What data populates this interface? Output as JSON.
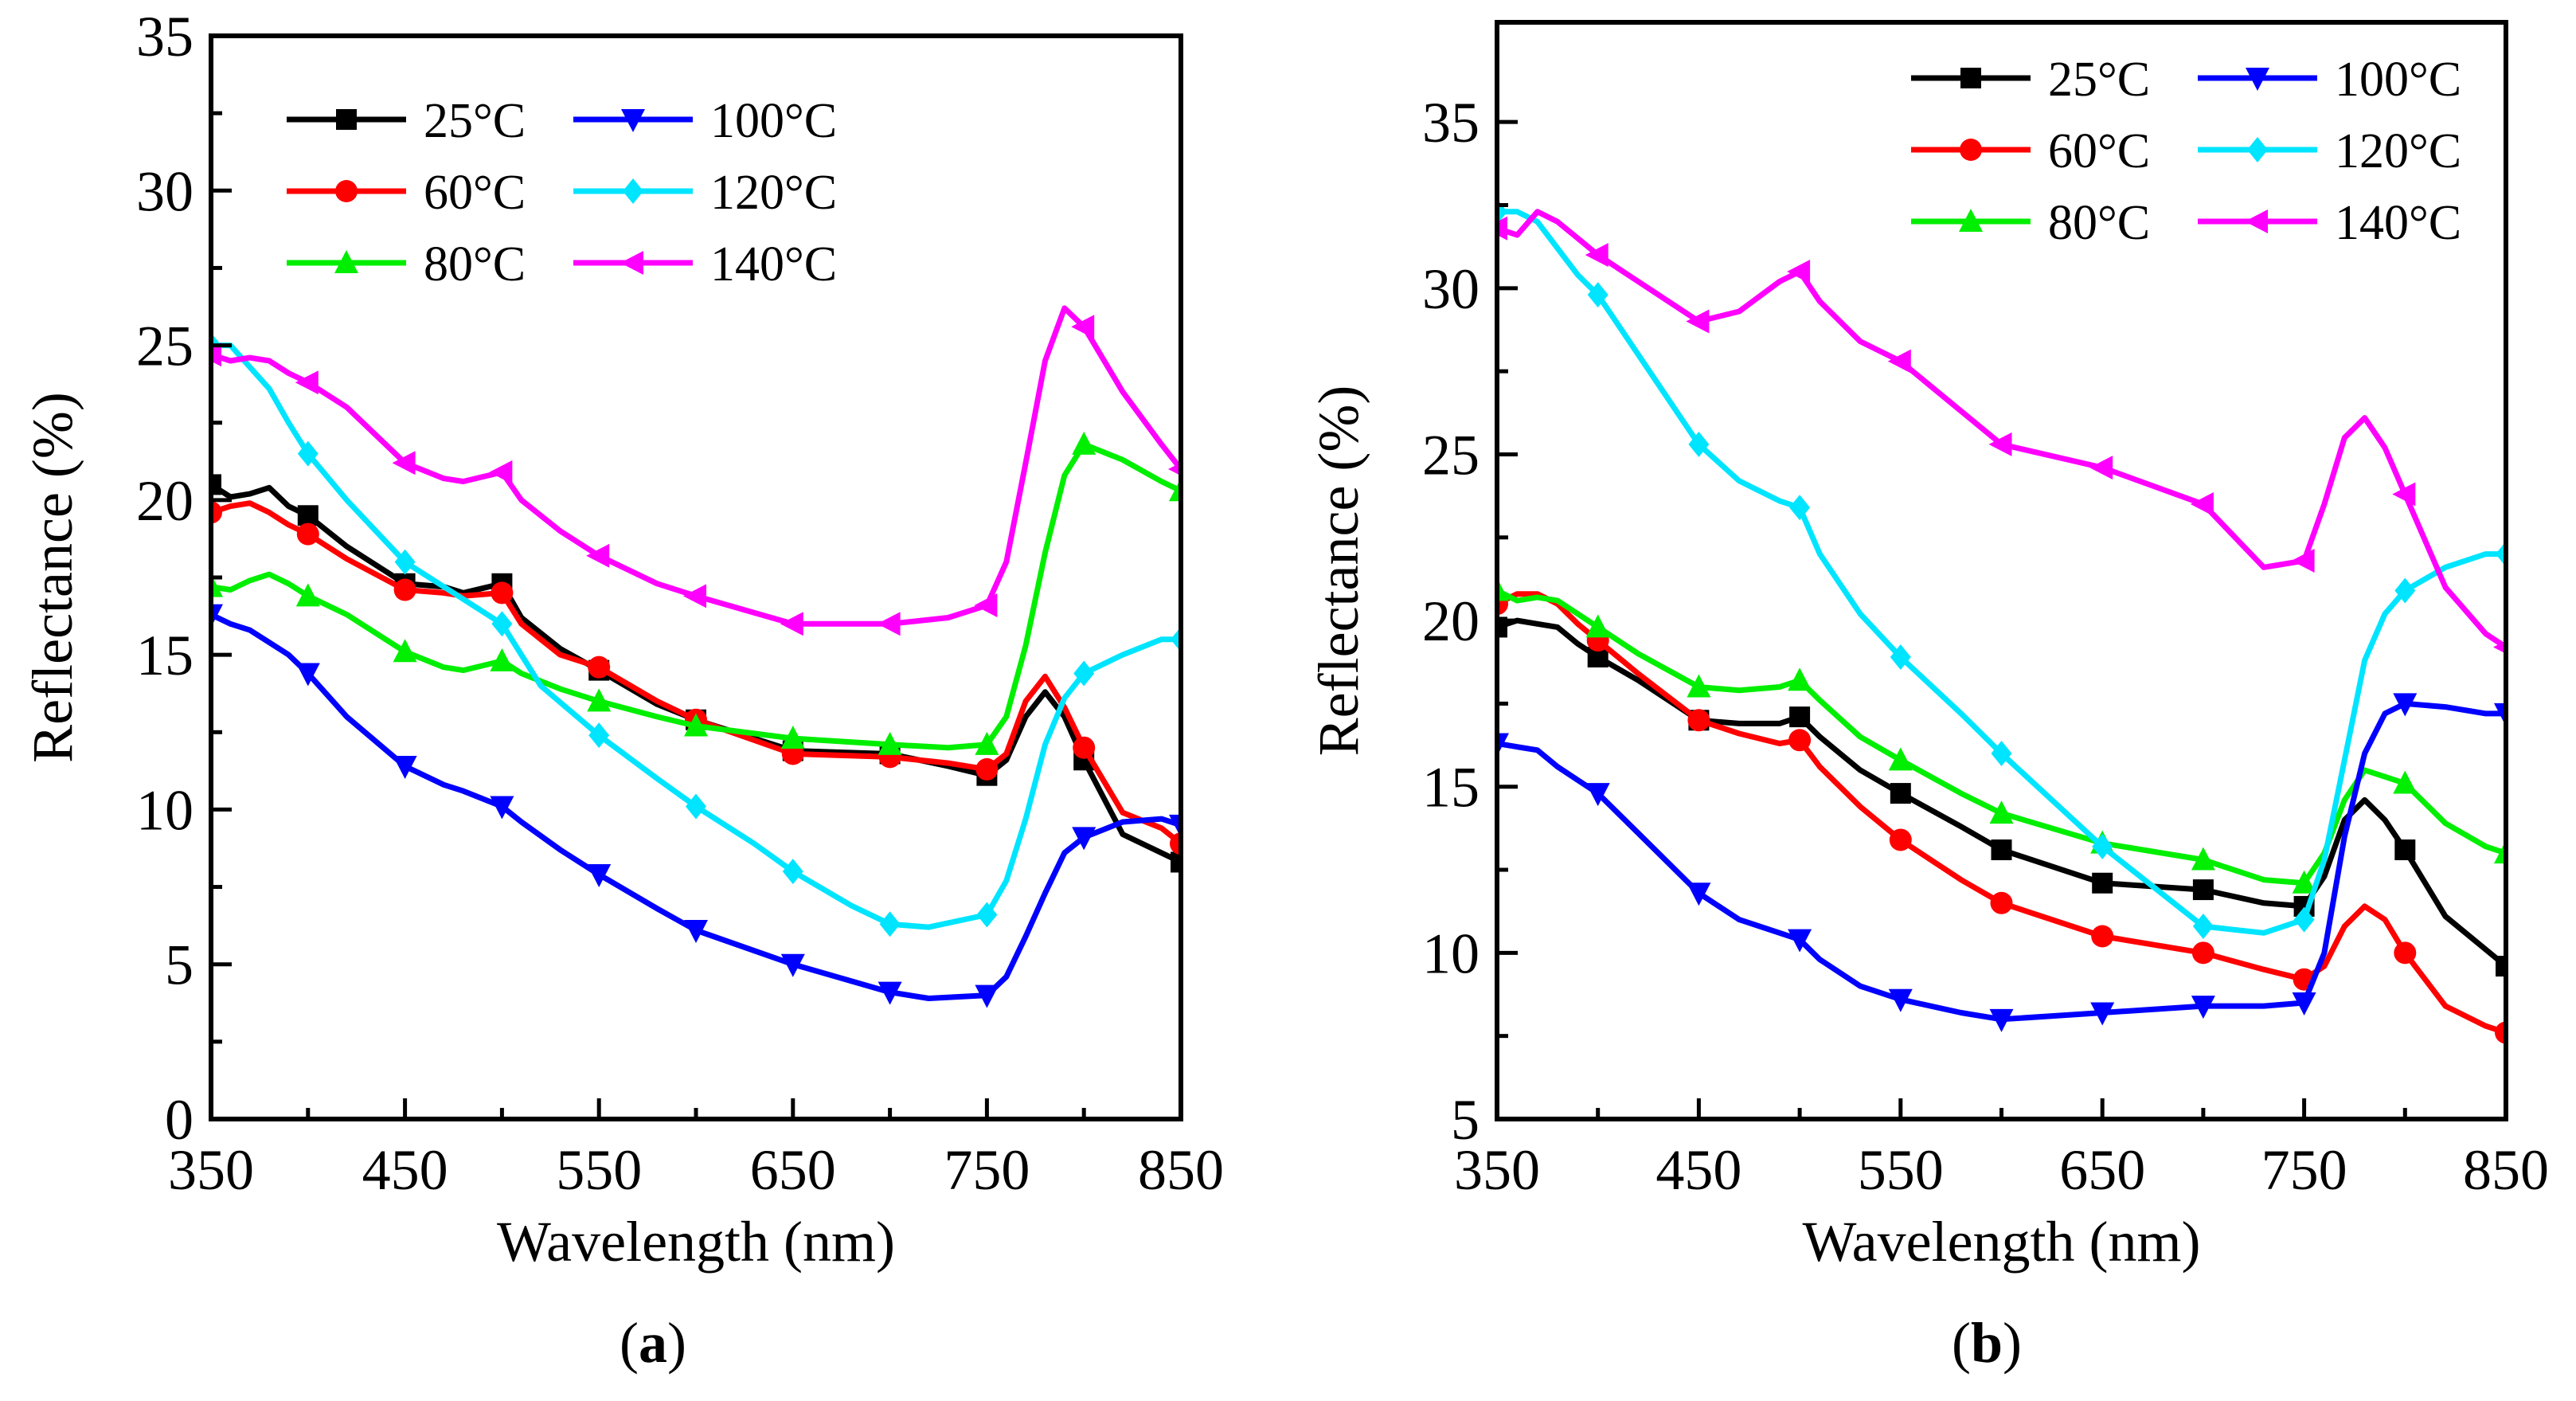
{
  "figure": {
    "panels": [
      "a",
      "b"
    ]
  },
  "chart_data": [
    {
      "type": "line",
      "panel_label": "a",
      "caption": {
        "open": "(",
        "letter": "a",
        "close": ")"
      },
      "xlabel": "Wavelength (nm)",
      "ylabel": "Reflectance (%)",
      "xlim": [
        350,
        850
      ],
      "ylim": [
        0,
        35
      ],
      "xticks": [
        350,
        450,
        550,
        650,
        750,
        850
      ],
      "yticks": [
        0,
        5,
        10,
        15,
        20,
        25,
        30,
        35
      ],
      "grid": false,
      "legend_position": "top",
      "series": [
        {
          "name": "25°C",
          "color": "#000000",
          "marker": "square",
          "x": [
            350,
            360,
            370,
            380,
            390,
            400,
            420,
            450,
            470,
            480,
            500,
            510,
            530,
            550,
            580,
            600,
            650,
            700,
            730,
            750,
            760,
            770,
            780,
            790,
            800,
            820,
            840,
            850
          ],
          "y": [
            20.5,
            20.1,
            20.2,
            20.4,
            19.8,
            19.5,
            18.5,
            17.3,
            17.2,
            17.0,
            17.3,
            16.2,
            15.2,
            14.5,
            13.4,
            12.9,
            11.9,
            11.8,
            11.4,
            11.1,
            11.6,
            13.0,
            13.8,
            13.0,
            11.6,
            9.2,
            8.6,
            8.3
          ]
        },
        {
          "name": "60°C",
          "color": "#ff0000",
          "marker": "circle",
          "x": [
            350,
            360,
            370,
            380,
            390,
            400,
            420,
            450,
            470,
            480,
            500,
            510,
            530,
            550,
            580,
            600,
            650,
            700,
            730,
            750,
            760,
            770,
            780,
            790,
            800,
            820,
            840,
            850
          ],
          "y": [
            19.6,
            19.8,
            19.9,
            19.6,
            19.2,
            18.9,
            18.1,
            17.1,
            17.0,
            16.9,
            17.0,
            16.0,
            15.0,
            14.6,
            13.5,
            12.9,
            11.8,
            11.7,
            11.5,
            11.3,
            11.8,
            13.5,
            14.3,
            13.3,
            12.0,
            9.9,
            9.4,
            8.9
          ]
        },
        {
          "name": "80°C",
          "color": "#00ee00",
          "marker": "triangle-up",
          "x": [
            350,
            360,
            370,
            380,
            390,
            400,
            420,
            450,
            470,
            480,
            500,
            510,
            530,
            550,
            580,
            600,
            650,
            700,
            730,
            750,
            760,
            770,
            780,
            790,
            800,
            820,
            840,
            850
          ],
          "y": [
            17.2,
            17.1,
            17.4,
            17.6,
            17.3,
            16.9,
            16.3,
            15.1,
            14.6,
            14.5,
            14.8,
            14.4,
            13.9,
            13.5,
            13.0,
            12.7,
            12.3,
            12.1,
            12.0,
            12.1,
            13.0,
            15.3,
            18.3,
            20.8,
            21.8,
            21.3,
            20.6,
            20.3
          ]
        },
        {
          "name": "100°C",
          "color": "#0000ff",
          "marker": "triangle-down",
          "x": [
            350,
            360,
            370,
            380,
            390,
            400,
            420,
            450,
            470,
            480,
            500,
            510,
            530,
            550,
            580,
            600,
            650,
            700,
            720,
            750,
            760,
            770,
            780,
            790,
            800,
            820,
            840,
            850
          ],
          "y": [
            16.3,
            16.0,
            15.8,
            15.4,
            15.0,
            14.4,
            13.0,
            11.4,
            10.8,
            10.6,
            10.1,
            9.6,
            8.7,
            7.9,
            6.8,
            6.1,
            5.0,
            4.1,
            3.9,
            4.0,
            4.6,
            5.9,
            7.3,
            8.6,
            9.1,
            9.6,
            9.7,
            9.5
          ]
        },
        {
          "name": "120°C",
          "color": "#00e5ff",
          "marker": "diamond",
          "x": [
            350,
            360,
            370,
            380,
            390,
            400,
            420,
            450,
            480,
            500,
            520,
            550,
            580,
            600,
            630,
            650,
            680,
            700,
            720,
            750,
            760,
            770,
            780,
            790,
            800,
            820,
            840,
            850
          ],
          "y": [
            25.0,
            25.0,
            24.3,
            23.6,
            22.5,
            21.5,
            20.0,
            18.0,
            16.8,
            16.0,
            14.0,
            12.4,
            11.0,
            10.1,
            8.9,
            8.0,
            6.9,
            6.3,
            6.2,
            6.6,
            7.7,
            9.7,
            12.1,
            13.6,
            14.4,
            15.0,
            15.5,
            15.5
          ]
        },
        {
          "name": "140°C",
          "color": "#ff00ff",
          "marker": "triangle-left",
          "x": [
            350,
            360,
            370,
            380,
            390,
            400,
            420,
            450,
            470,
            480,
            500,
            510,
            530,
            550,
            580,
            600,
            650,
            700,
            730,
            750,
            760,
            770,
            780,
            790,
            800,
            820,
            840,
            850
          ],
          "y": [
            24.7,
            24.5,
            24.6,
            24.5,
            24.1,
            23.8,
            23.0,
            21.2,
            20.7,
            20.6,
            20.9,
            20.0,
            19.0,
            18.2,
            17.3,
            16.9,
            16.0,
            16.0,
            16.2,
            16.6,
            18.0,
            21.2,
            24.5,
            26.2,
            25.6,
            23.5,
            21.8,
            21.0
          ]
        }
      ]
    },
    {
      "type": "line",
      "panel_label": "b",
      "caption": {
        "open": "(",
        "letter": "b",
        "close": ")"
      },
      "xlabel": "Wavelength (nm)",
      "ylabel": "Reflectance (%)",
      "xlim": [
        350,
        850
      ],
      "ylim": [
        5,
        38
      ],
      "xticks": [
        350,
        450,
        550,
        650,
        750,
        850
      ],
      "yticks": [
        5,
        10,
        15,
        20,
        25,
        30,
        35
      ],
      "grid": false,
      "legend_position": "top-right",
      "series": [
        {
          "name": "25°C",
          "color": "#000000",
          "marker": "square",
          "x": [
            350,
            360,
            370,
            380,
            390,
            400,
            420,
            450,
            470,
            490,
            500,
            510,
            530,
            550,
            580,
            600,
            650,
            700,
            730,
            750,
            760,
            770,
            780,
            790,
            800,
            820,
            840,
            850
          ],
          "y": [
            19.8,
            20.0,
            19.9,
            19.8,
            19.3,
            18.9,
            18.2,
            17.0,
            16.9,
            16.9,
            17.1,
            16.5,
            15.5,
            14.8,
            13.8,
            13.1,
            12.1,
            11.9,
            11.5,
            11.4,
            12.3,
            14.0,
            14.6,
            14.0,
            13.1,
            11.1,
            10.1,
            9.6
          ]
        },
        {
          "name": "60°C",
          "color": "#ff0000",
          "marker": "circle",
          "x": [
            350,
            360,
            370,
            380,
            390,
            400,
            420,
            450,
            470,
            490,
            500,
            510,
            530,
            550,
            580,
            600,
            650,
            700,
            730,
            750,
            760,
            770,
            780,
            790,
            800,
            820,
            840,
            850
          ],
          "y": [
            20.5,
            20.8,
            20.8,
            20.5,
            19.9,
            19.4,
            18.4,
            17.0,
            16.6,
            16.3,
            16.4,
            15.6,
            14.4,
            13.4,
            12.2,
            11.5,
            10.5,
            10.0,
            9.5,
            9.2,
            9.6,
            10.8,
            11.4,
            11.0,
            10.0,
            8.4,
            7.8,
            7.6
          ]
        },
        {
          "name": "80°C",
          "color": "#00ee00",
          "marker": "triangle-up",
          "x": [
            350,
            360,
            370,
            380,
            390,
            400,
            420,
            450,
            470,
            490,
            500,
            510,
            530,
            550,
            580,
            600,
            650,
            700,
            730,
            750,
            760,
            770,
            780,
            790,
            800,
            820,
            840,
            850
          ],
          "y": [
            20.9,
            20.6,
            20.7,
            20.6,
            20.2,
            19.8,
            19.0,
            18.0,
            17.9,
            18.0,
            18.2,
            17.6,
            16.5,
            15.8,
            14.8,
            14.2,
            13.3,
            12.8,
            12.2,
            12.1,
            13.0,
            14.6,
            15.5,
            15.3,
            15.1,
            13.9,
            13.2,
            13.0
          ]
        },
        {
          "name": "100°C",
          "color": "#0000ff",
          "marker": "triangle-down",
          "x": [
            350,
            360,
            370,
            380,
            390,
            400,
            420,
            450,
            470,
            490,
            500,
            510,
            530,
            550,
            580,
            600,
            650,
            700,
            730,
            750,
            760,
            770,
            780,
            790,
            800,
            820,
            840,
            850
          ],
          "y": [
            16.3,
            16.2,
            16.1,
            15.6,
            15.2,
            14.8,
            13.6,
            11.8,
            11.0,
            10.6,
            10.4,
            9.8,
            9.0,
            8.6,
            8.2,
            8.0,
            8.2,
            8.4,
            8.4,
            8.5,
            10.0,
            13.5,
            16.0,
            17.2,
            17.5,
            17.4,
            17.2,
            17.2
          ]
        },
        {
          "name": "120°C",
          "color": "#00e5ff",
          "marker": "diamond",
          "x": [
            350,
            360,
            370,
            380,
            390,
            400,
            420,
            450,
            470,
            490,
            500,
            510,
            530,
            550,
            580,
            600,
            650,
            700,
            730,
            750,
            760,
            770,
            780,
            790,
            800,
            820,
            840,
            850
          ],
          "y": [
            32.3,
            32.3,
            32.0,
            31.2,
            30.4,
            29.8,
            28.0,
            25.3,
            24.2,
            23.6,
            23.4,
            22.0,
            20.2,
            18.9,
            17.2,
            16.0,
            13.2,
            10.8,
            10.6,
            11.0,
            12.8,
            15.8,
            18.8,
            20.2,
            20.9,
            21.6,
            22.0,
            22.0
          ]
        },
        {
          "name": "140°C",
          "color": "#ff00ff",
          "marker": "triangle-left",
          "x": [
            350,
            360,
            370,
            380,
            390,
            400,
            420,
            450,
            470,
            490,
            500,
            510,
            530,
            550,
            580,
            600,
            650,
            700,
            730,
            750,
            760,
            770,
            780,
            790,
            800,
            820,
            840,
            850
          ],
          "y": [
            31.8,
            31.6,
            32.3,
            32.0,
            31.5,
            31.0,
            30.2,
            29.0,
            29.3,
            30.2,
            30.5,
            29.6,
            28.4,
            27.8,
            26.3,
            25.3,
            24.6,
            23.5,
            21.6,
            21.8,
            23.5,
            25.5,
            26.1,
            25.2,
            23.8,
            21.0,
            19.6,
            19.2
          ]
        }
      ]
    }
  ]
}
